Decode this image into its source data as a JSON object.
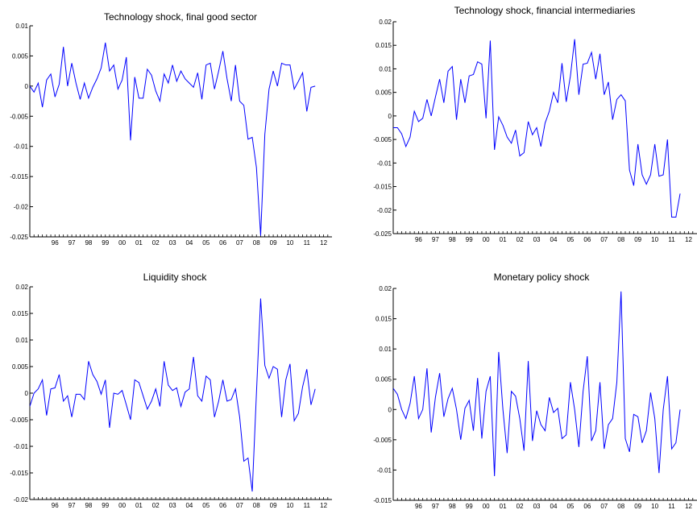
{
  "chart_data": [
    {
      "type": "line",
      "title": "Technology shock, final good sector",
      "xlabel": "",
      "ylabel": "",
      "ylim": [
        -0.025,
        0.01
      ],
      "yticks": [
        {
          "value": 0.01,
          "label": "0.01"
        },
        {
          "value": 0.005,
          "label": "0.005"
        },
        {
          "value": 0,
          "label": "0"
        },
        {
          "value": -0.005,
          "label": "-0.005"
        },
        {
          "value": -0.01,
          "label": "-0.01"
        },
        {
          "value": -0.015,
          "label": "-0.015"
        },
        {
          "value": -0.02,
          "label": "-0.02"
        },
        {
          "value": -0.025,
          "label": "-0.025"
        }
      ],
      "xlim": [
        1995.0,
        2013.0
      ],
      "xticks": [
        "96",
        "97",
        "98",
        "99",
        "00",
        "01",
        "02",
        "03",
        "04",
        "05",
        "06",
        "07",
        "08",
        "09",
        "10",
        "11",
        "12"
      ],
      "color": "#0000ff",
      "series": [
        {
          "x_start": 1995.0,
          "x_step": 0.25,
          "values": [
            0.0,
            -0.001,
            0.0005,
            -0.0035,
            0.001,
            0.002,
            -0.0018,
            0.0003,
            0.0065,
            0.0,
            0.0038,
            0.0005,
            -0.0022,
            0.0005,
            -0.002,
            -0.0002,
            0.0012,
            0.003,
            0.0072,
            0.0025,
            0.0035,
            -0.0005,
            0.001,
            0.0048,
            -0.009,
            0.0015,
            -0.002,
            -0.002,
            0.0028,
            0.0018,
            -0.0008,
            -0.0025,
            0.002,
            0.0005,
            0.0035,
            0.0008,
            0.0025,
            0.0012,
            0.0005,
            -0.0002,
            0.0022,
            -0.0022,
            0.0035,
            0.0038,
            -0.0005,
            0.0025,
            0.0058,
            0.0012,
            -0.0025,
            0.0035,
            -0.0025,
            -0.0032,
            -0.0088,
            -0.0085,
            -0.0135,
            -0.0248,
            -0.008,
            -0.0005,
            0.0025,
            0.0,
            0.0038,
            0.0035,
            0.0035,
            -0.0005,
            0.0008,
            0.0022,
            -0.0042,
            -0.0002,
            0.0
          ]
        }
      ]
    },
    {
      "type": "line",
      "title": "Technology shock, financial intermediaries",
      "xlabel": "",
      "ylabel": "",
      "ylim": [
        -0.025,
        0.02
      ],
      "yticks": [
        {
          "value": 0.02,
          "label": "0.02"
        },
        {
          "value": 0.015,
          "label": "0.015"
        },
        {
          "value": 0.01,
          "label": "0.01"
        },
        {
          "value": 0.005,
          "label": "0.005"
        },
        {
          "value": 0,
          "label": "0"
        },
        {
          "value": -0.005,
          "label": "-0.005"
        },
        {
          "value": -0.01,
          "label": "-0.01"
        },
        {
          "value": -0.015,
          "label": "-0.015"
        },
        {
          "value": -0.02,
          "label": "-0.02"
        },
        {
          "value": -0.025,
          "label": "-0.025"
        }
      ],
      "xlim": [
        1995.0,
        2013.0
      ],
      "xticks": [
        "96",
        "97",
        "98",
        "99",
        "00",
        "01",
        "02",
        "03",
        "04",
        "05",
        "06",
        "07",
        "08",
        "09",
        "10",
        "11",
        "12"
      ],
      "color": "#0000ff",
      "series": [
        {
          "x_start": 1995.0,
          "x_step": 0.25,
          "values": [
            -0.0025,
            -0.0025,
            -0.0038,
            -0.0065,
            -0.0045,
            0.001,
            -0.0012,
            -0.0005,
            0.0035,
            0.0,
            0.004,
            0.0078,
            0.0028,
            0.0095,
            0.0105,
            -0.0008,
            0.0078,
            0.0028,
            0.0085,
            0.0088,
            0.0115,
            0.011,
            -0.0005,
            0.016,
            -0.0072,
            -0.0002,
            -0.002,
            -0.0045,
            -0.0058,
            -0.003,
            -0.0085,
            -0.0078,
            -0.0012,
            -0.004,
            -0.0025,
            -0.0065,
            -0.0015,
            0.001,
            0.005,
            0.0028,
            0.0112,
            0.003,
            0.0085,
            0.0163,
            0.0045,
            0.011,
            0.0112,
            0.0135,
            0.0078,
            0.0132,
            0.0045,
            0.0072,
            -0.0008,
            0.0035,
            0.0045,
            0.0032,
            -0.0115,
            -0.0148,
            -0.006,
            -0.0125,
            -0.0145,
            -0.0125,
            -0.006,
            -0.0128,
            -0.0125,
            -0.005,
            -0.0215,
            -0.0215,
            -0.0165
          ]
        }
      ]
    },
    {
      "type": "line",
      "title": "Liquidity shock",
      "xlabel": "",
      "ylabel": "",
      "ylim": [
        -0.02,
        0.02
      ],
      "yticks": [
        {
          "value": 0.02,
          "label": "0.02"
        },
        {
          "value": 0.015,
          "label": "0.015"
        },
        {
          "value": 0.01,
          "label": "0.01"
        },
        {
          "value": 0.005,
          "label": "0.005"
        },
        {
          "value": 0,
          "label": "0"
        },
        {
          "value": -0.005,
          "label": "-0.005"
        },
        {
          "value": -0.01,
          "label": "-0.01"
        },
        {
          "value": -0.015,
          "label": "-0.015"
        },
        {
          "value": -0.02,
          "label": "-0.02"
        }
      ],
      "xlim": [
        1995.0,
        2013.0
      ],
      "xticks": [
        "96",
        "97",
        "98",
        "99",
        "00",
        "01",
        "02",
        "03",
        "04",
        "05",
        "06",
        "07",
        "08",
        "09",
        "10",
        "11",
        "12"
      ],
      "color": "#0000ff",
      "series": [
        {
          "x_start": 1995.0,
          "x_step": 0.25,
          "values": [
            -0.0025,
            0.0,
            0.0008,
            0.0025,
            -0.0042,
            0.0008,
            0.001,
            0.0035,
            -0.0015,
            -0.0005,
            -0.0045,
            -0.0002,
            -0.0002,
            -0.0012,
            0.006,
            0.0035,
            0.0022,
            -0.0002,
            0.0025,
            -0.0065,
            0.0,
            -0.0002,
            0.0005,
            -0.0022,
            -0.005,
            0.0025,
            0.002,
            -0.0005,
            -0.003,
            -0.0015,
            0.0008,
            -0.0025,
            0.006,
            0.0015,
            0.0005,
            0.001,
            -0.0025,
            0.0002,
            0.0008,
            0.0068,
            -0.0005,
            -0.0015,
            0.0032,
            0.0025,
            -0.0045,
            -0.0015,
            0.0025,
            -0.0015,
            -0.0012,
            0.0008,
            -0.0045,
            -0.0128,
            -0.0122,
            -0.0185,
            0.0,
            0.0178,
            0.0052,
            0.0028,
            0.005,
            0.0045,
            -0.0045,
            0.0025,
            0.0055,
            -0.0052,
            -0.0038,
            0.0012,
            0.0045,
            -0.0022,
            0.0008
          ]
        }
      ]
    },
    {
      "type": "line",
      "title": "Monetary policy shock",
      "xlabel": "",
      "ylabel": "",
      "ylim": [
        -0.015,
        0.02
      ],
      "yticks": [
        {
          "value": 0.02,
          "label": "0.02"
        },
        {
          "value": 0.015,
          "label": "0.015"
        },
        {
          "value": 0.01,
          "label": "0.01"
        },
        {
          "value": 0.005,
          "label": "0.005"
        },
        {
          "value": 0,
          "label": "0"
        },
        {
          "value": -0.005,
          "label": "-0.005"
        },
        {
          "value": -0.01,
          "label": "-0.01"
        },
        {
          "value": -0.015,
          "label": "-0.015"
        }
      ],
      "xlim": [
        1995.0,
        2013.0
      ],
      "xticks": [
        "96",
        "97",
        "98",
        "99",
        "00",
        "01",
        "02",
        "03",
        "04",
        "05",
        "06",
        "07",
        "08",
        "09",
        "10",
        "11",
        "12"
      ],
      "color": "#0000ff",
      "series": [
        {
          "x_start": 1995.0,
          "x_step": 0.25,
          "values": [
            0.0035,
            0.0025,
            0.0,
            -0.0015,
            0.001,
            0.0055,
            -0.0015,
            0.0,
            0.0068,
            -0.0038,
            0.002,
            0.006,
            -0.0012,
            0.0018,
            0.0035,
            0.0,
            -0.005,
            0.0002,
            0.0015,
            -0.0035,
            0.0052,
            -0.0048,
            0.003,
            0.0055,
            -0.011,
            0.0095,
            0.0,
            -0.0072,
            0.003,
            0.0022,
            -0.0015,
            -0.0068,
            0.008,
            -0.0052,
            -0.0002,
            -0.0025,
            -0.0035,
            0.002,
            -0.0005,
            0.0002,
            -0.0048,
            -0.0042,
            0.0045,
            0.0,
            -0.0062,
            0.003,
            0.0088,
            -0.0052,
            -0.0035,
            0.0045,
            -0.0065,
            -0.0025,
            -0.0015,
            0.0045,
            0.0195,
            -0.0048,
            -0.007,
            -0.0008,
            -0.0012,
            -0.0055,
            -0.0035,
            0.0028,
            -0.0015,
            -0.0105,
            0.0,
            0.0055,
            -0.0065,
            -0.0055,
            0.0
          ]
        }
      ]
    }
  ]
}
